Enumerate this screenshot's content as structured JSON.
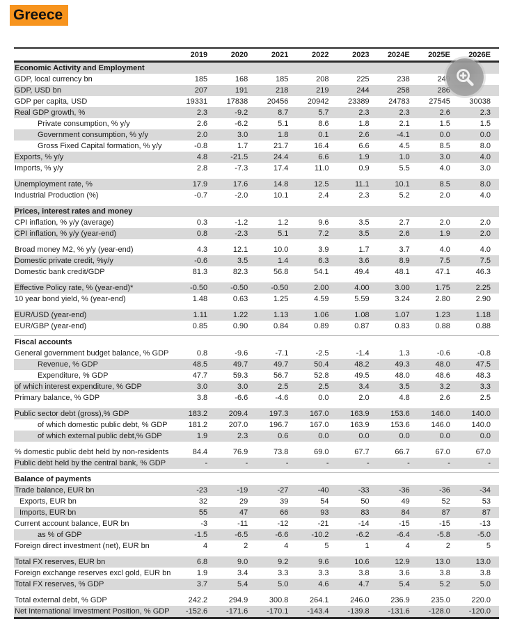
{
  "title": "Greece",
  "colors": {
    "title_highlight": "#F7941E",
    "row_stripe": "#D9D9D9",
    "rule": "#2B2B2B"
  },
  "overlay": {
    "icon": "zoom-in-magnifier"
  },
  "table": {
    "columns": [
      "2019",
      "2020",
      "2021",
      "2022",
      "2023",
      "2024E",
      "2025E",
      "2026E"
    ],
    "rows": [
      {
        "type": "section",
        "label": "Economic Activity and Employment",
        "shaded": true
      },
      {
        "type": "data",
        "label": "GDP, local currency bn",
        "indent": 0,
        "shaded": false,
        "values": [
          "185",
          "168",
          "185",
          "208",
          "225",
          "238",
          "249",
          ""
        ]
      },
      {
        "type": "data",
        "label": "GDP, USD bn",
        "indent": 0,
        "shaded": true,
        "values": [
          "207",
          "191",
          "218",
          "219",
          "244",
          "258",
          "286",
          ""
        ]
      },
      {
        "type": "data",
        "label": "GDP per capita, USD",
        "indent": 0,
        "shaded": false,
        "values": [
          "19331",
          "17838",
          "20456",
          "20942",
          "23389",
          "24783",
          "27545",
          "30038"
        ]
      },
      {
        "type": "data",
        "label": "Real GDP growth, %",
        "indent": 0,
        "shaded": true,
        "values": [
          "2.3",
          "-9.2",
          "8.7",
          "5.7",
          "2.3",
          "2.3",
          "2.6",
          "2.3"
        ]
      },
      {
        "type": "data",
        "label": "Private consumption, % y/y",
        "indent": 1,
        "shaded": false,
        "values": [
          "2.6",
          "-6.2",
          "5.1",
          "8.6",
          "1.8",
          "2.1",
          "1.5",
          "1.5"
        ]
      },
      {
        "type": "data",
        "label": "Government consumption, % y/y",
        "indent": 1,
        "shaded": true,
        "values": [
          "2.0",
          "3.0",
          "1.8",
          "0.1",
          "2.6",
          "-4.1",
          "0.0",
          "0.0"
        ]
      },
      {
        "type": "data",
        "label": "Gross Fixed Capital formation, % y/y",
        "indent": 1,
        "shaded": false,
        "values": [
          "-0.8",
          "1.7",
          "21.7",
          "16.4",
          "6.6",
          "4.5",
          "8.5",
          "8.0"
        ]
      },
      {
        "type": "data",
        "label": "Exports, % y/y",
        "indent": 0,
        "shaded": true,
        "values": [
          "4.8",
          "-21.5",
          "24.4",
          "6.6",
          "1.9",
          "1.0",
          "3.0",
          "4.0"
        ]
      },
      {
        "type": "data",
        "label": "Imports, % y/y",
        "indent": 0,
        "shaded": false,
        "values": [
          "2.8",
          "-7.3",
          "17.4",
          "11.0",
          "0.9",
          "5.5",
          "4.0",
          "3.0"
        ]
      },
      {
        "type": "gap",
        "line": false
      },
      {
        "type": "data",
        "label": "Unemployment rate, %",
        "indent": 0,
        "shaded": true,
        "values": [
          "17.9",
          "17.6",
          "14.8",
          "12.5",
          "11.1",
          "10.1",
          "8.5",
          "8.0"
        ]
      },
      {
        "type": "data",
        "label": "Industrial Production (%)",
        "indent": 0,
        "shaded": false,
        "values": [
          "-0.7",
          "-2.0",
          "10.1",
          "2.4",
          "2.3",
          "5.2",
          "2.0",
          "4.0"
        ]
      },
      {
        "type": "gap",
        "line": false
      },
      {
        "type": "section",
        "label": "Prices, interest rates and money",
        "shaded": true
      },
      {
        "type": "data",
        "label": "CPI inflation, % y/y (average)",
        "indent": 0,
        "shaded": false,
        "values": [
          "0.3",
          "-1.2",
          "1.2",
          "9.6",
          "3.5",
          "2.7",
          "2.0",
          "2.0"
        ]
      },
      {
        "type": "data",
        "label": "CPI inflation, % y/y (year-end)",
        "indent": 0,
        "shaded": true,
        "values": [
          "0.8",
          "-2.3",
          "5.1",
          "7.2",
          "3.5",
          "2.6",
          "1.9",
          "2.0"
        ]
      },
      {
        "type": "gap",
        "line": false
      },
      {
        "type": "data",
        "label": "Broad money M2, % y/y (year-end)",
        "indent": 0,
        "shaded": false,
        "values": [
          "4.3",
          "12.1",
          "10.0",
          "3.9",
          "1.7",
          "3.7",
          "4.0",
          "4.0"
        ]
      },
      {
        "type": "data",
        "label": "Domestic private credit, %y/y",
        "indent": 0,
        "shaded": true,
        "values": [
          "-0.6",
          "3.5",
          "1.4",
          "6.3",
          "3.6",
          "8.9",
          "7.5",
          "7.5"
        ]
      },
      {
        "type": "data",
        "label": "Domestic bank credit/GDP",
        "indent": 0,
        "shaded": false,
        "values": [
          "81.3",
          "82.3",
          "56.8",
          "54.1",
          "49.4",
          "48.1",
          "47.1",
          "46.3"
        ]
      },
      {
        "type": "gap",
        "line": false
      },
      {
        "type": "data",
        "label": "Effective Policy rate, % (year-end)*",
        "indent": 0,
        "shaded": true,
        "values": [
          "-0.50",
          "-0.50",
          "-0.50",
          "2.00",
          "4.00",
          "3.00",
          "1.75",
          "2.25"
        ]
      },
      {
        "type": "data",
        "label": "10 year bond yield, % (year-end)",
        "indent": 0,
        "shaded": false,
        "values": [
          "1.48",
          "0.63",
          "1.25",
          "4.59",
          "5.59",
          "3.24",
          "2.80",
          "2.90"
        ]
      },
      {
        "type": "gap",
        "line": false
      },
      {
        "type": "data",
        "label": "EUR/USD (year-end)",
        "indent": 0,
        "shaded": true,
        "values": [
          "1.11",
          "1.22",
          "1.13",
          "1.06",
          "1.08",
          "1.07",
          "1.23",
          "1.18"
        ]
      },
      {
        "type": "data",
        "label": "EUR/GBP (year-end)",
        "indent": 0,
        "shaded": false,
        "values": [
          "0.85",
          "0.90",
          "0.84",
          "0.89",
          "0.87",
          "0.83",
          "0.88",
          "0.88"
        ]
      },
      {
        "type": "gap",
        "line": true
      },
      {
        "type": "section",
        "label": "Fiscal accounts",
        "shaded": false
      },
      {
        "type": "data",
        "label": "General government budget balance, % GDP",
        "indent": 0,
        "shaded": false,
        "values": [
          "0.8",
          "-9.6",
          "-7.1",
          "-2.5",
          "-1.4",
          "1.3",
          "-0.6",
          "-0.8"
        ]
      },
      {
        "type": "data",
        "label": "Revenue, % GDP",
        "indent": 1,
        "shaded": true,
        "values": [
          "48.5",
          "49.7",
          "49.7",
          "50.4",
          "48.2",
          "49.3",
          "48.0",
          "47.5"
        ]
      },
      {
        "type": "data",
        "label": "Expenditure, % GDP",
        "indent": 1,
        "shaded": false,
        "values": [
          "47.7",
          "59.3",
          "56.7",
          "52.8",
          "49.5",
          "48.0",
          "48.6",
          "48.3"
        ]
      },
      {
        "type": "data",
        "label": "of which interest expenditure, % GDP",
        "indent": 0,
        "shaded": true,
        "values": [
          "3.0",
          "3.0",
          "2.5",
          "2.5",
          "3.4",
          "3.5",
          "3.2",
          "3.3"
        ]
      },
      {
        "type": "data",
        "label": "Primary balance, % GDP",
        "indent": 0,
        "shaded": false,
        "values": [
          "3.8",
          "-6.6",
          "-4.6",
          "0.0",
          "2.0",
          "4.8",
          "2.6",
          "2.5"
        ]
      },
      {
        "type": "gap",
        "line": false
      },
      {
        "type": "data",
        "label": "Public sector debt (gross),% GDP",
        "indent": 0,
        "shaded": true,
        "values": [
          "183.2",
          "209.4",
          "197.3",
          "167.0",
          "163.9",
          "153.6",
          "146.0",
          "140.0"
        ]
      },
      {
        "type": "data",
        "label": "of which domestic public debt, % GDP",
        "indent": 1,
        "shaded": false,
        "values": [
          "181.2",
          "207.0",
          "196.7",
          "167.0",
          "163.9",
          "153.6",
          "146.0",
          "140.0"
        ]
      },
      {
        "type": "data",
        "label": "of which external public debt,% GDP",
        "indent": 1,
        "shaded": true,
        "values": [
          "1.9",
          "2.3",
          "0.6",
          "0.0",
          "0.0",
          "0.0",
          "0.0",
          "0.0"
        ]
      },
      {
        "type": "gap",
        "line": false
      },
      {
        "type": "data",
        "label": "% domestic public debt held by non-residents",
        "indent": 0,
        "shaded": false,
        "values": [
          "84.4",
          "76.9",
          "73.8",
          "69.0",
          "67.7",
          "66.7",
          "67.0",
          "67.0"
        ]
      },
      {
        "type": "data",
        "label": "Public debt held by the central bank, % GDP",
        "indent": 0,
        "shaded": true,
        "values": [
          "-",
          "-",
          "-",
          "-",
          "-",
          "-",
          "-",
          "-"
        ]
      },
      {
        "type": "gap",
        "line": true
      },
      {
        "type": "section",
        "label": "Balance of payments",
        "shaded": false
      },
      {
        "type": "data",
        "label": "Trade balance, EUR bn",
        "indent": 0,
        "shaded": true,
        "values": [
          "-23",
          "-19",
          "-27",
          "-40",
          "-33",
          "-36",
          "-36",
          "-34"
        ]
      },
      {
        "type": "data",
        "label": "Exports, EUR bn",
        "indent": 2,
        "shaded": false,
        "values": [
          "32",
          "29",
          "39",
          "54",
          "50",
          "49",
          "52",
          "53"
        ]
      },
      {
        "type": "data",
        "label": "Imports, EUR bn",
        "indent": 2,
        "shaded": true,
        "values": [
          "55",
          "47",
          "66",
          "93",
          "83",
          "84",
          "87",
          "87"
        ]
      },
      {
        "type": "data",
        "label": "Current account balance, EUR bn",
        "indent": 0,
        "shaded": false,
        "values": [
          "-3",
          "-11",
          "-12",
          "-21",
          "-14",
          "-15",
          "-15",
          "-13"
        ]
      },
      {
        "type": "data",
        "label": "as % of GDP",
        "indent": 1,
        "shaded": true,
        "values": [
          "-1.5",
          "-6.5",
          "-6.6",
          "-10.2",
          "-6.2",
          "-6.4",
          "-5.8",
          "-5.0"
        ]
      },
      {
        "type": "data",
        "label": "Foreign direct investment (net), EUR bn",
        "indent": 0,
        "shaded": false,
        "values": [
          "4",
          "2",
          "4",
          "5",
          "1",
          "4",
          "2",
          "5"
        ]
      },
      {
        "type": "gap",
        "line": false
      },
      {
        "type": "data",
        "label": "Total FX reserves, EUR bn",
        "indent": 0,
        "shaded": true,
        "values": [
          "6.8",
          "9.0",
          "9.2",
          "9.6",
          "10.6",
          "12.9",
          "13.0",
          "13.0"
        ]
      },
      {
        "type": "data",
        "label": "Foreign exchange reserves excl gold, EUR bn",
        "indent": 0,
        "shaded": false,
        "values": [
          "1.9",
          "3.4",
          "3.3",
          "3.3",
          "3.8",
          "3.6",
          "3.8",
          "3.8"
        ]
      },
      {
        "type": "data",
        "label": "Total FX reserves, % GDP",
        "indent": 0,
        "shaded": true,
        "values": [
          "3.7",
          "5.4",
          "5.0",
          "4.6",
          "4.7",
          "5.4",
          "5.2",
          "5.0"
        ]
      },
      {
        "type": "gap",
        "line": false
      },
      {
        "type": "data",
        "label": "Total external debt, % GDP",
        "indent": 0,
        "shaded": false,
        "values": [
          "242.2",
          "294.9",
          "300.8",
          "264.1",
          "246.0",
          "236.9",
          "235.0",
          "220.0"
        ]
      },
      {
        "type": "data",
        "label": "Net International Investment Position, % GDP",
        "indent": 0,
        "shaded": true,
        "values": [
          "-152.6",
          "-171.6",
          "-170.1",
          "-143.4",
          "-139.8",
          "-131.6",
          "-128.0",
          "-120.0"
        ]
      }
    ]
  }
}
